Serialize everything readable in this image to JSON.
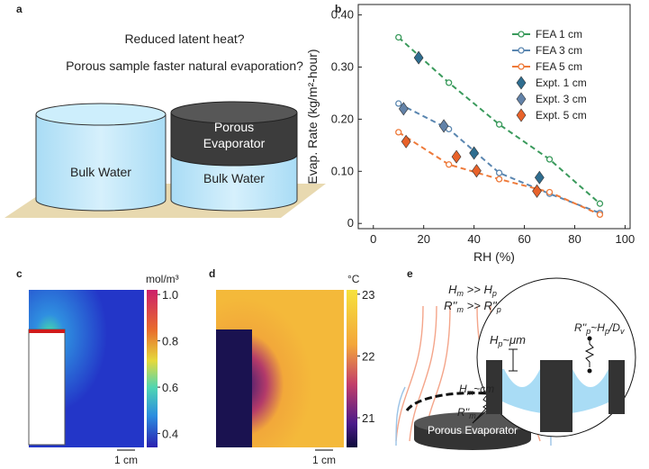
{
  "panel_a": {
    "label": "a",
    "question_1": "Reduced latent heat?",
    "question_2": "Porous sample faster natural evaporation?",
    "left_cylinder": "Bulk Water",
    "porous_line_1": "Porous",
    "porous_line_2": "Evaporator",
    "right_cylinder": "Bulk Water"
  },
  "chart_data": {
    "label": "b",
    "type": "line",
    "xlabel": "RH (%)",
    "ylabel": "Evap. Rate (kg/m²-hour)",
    "xlim": [
      -6,
      102
    ],
    "ylim": [
      -0.01,
      0.42
    ],
    "xticks": [
      0,
      20,
      40,
      60,
      80,
      100
    ],
    "yticks": [
      0,
      {
        "value": 0.1,
        "label": "0.10"
      },
      {
        "value": 0.2,
        "label": "0.20"
      },
      {
        "value": 0.3,
        "label": "0.30"
      },
      {
        "value": 0.4,
        "label": "0.40"
      }
    ],
    "legend": "upper right",
    "series": [
      {
        "name": "FEA 1 cm",
        "color": "#3a9a5c",
        "marker": "circle",
        "dashed": true,
        "x": [
          10,
          30,
          50,
          70,
          90
        ],
        "values": [
          0.357,
          0.27,
          0.19,
          0.123,
          0.038
        ]
      },
      {
        "name": "FEA 3 cm",
        "color": "#5a86b0",
        "marker": "circle",
        "dashed": true,
        "x": [
          10,
          30,
          50,
          70,
          90
        ],
        "values": [
          0.23,
          0.181,
          0.097,
          0.057,
          0.02
        ]
      },
      {
        "name": "FEA 5 cm",
        "color": "#ee7a3a",
        "marker": "circle",
        "dashed": true,
        "x": [
          10,
          30,
          50,
          70,
          90
        ],
        "values": [
          0.175,
          0.113,
          0.085,
          0.06,
          0.017
        ]
      },
      {
        "name": "Expt. 1 cm",
        "color": "#2f6d8f",
        "marker": "diamond",
        "dashed": false,
        "x": [
          18,
          40,
          66
        ],
        "values": [
          0.318,
          0.135,
          0.088
        ]
      },
      {
        "name": "Expt. 3 cm",
        "color": "#6282a8",
        "marker": "diamond",
        "dashed": false,
        "x": [
          12,
          28
        ],
        "values": [
          0.22,
          0.187
        ]
      },
      {
        "name": "Expt. 5 cm",
        "color": "#e8622a",
        "marker": "diamond",
        "dashed": false,
        "x": [
          13,
          33,
          41,
          65
        ],
        "values": [
          0.157,
          0.128,
          0.101,
          0.062
        ]
      }
    ]
  },
  "panel_c": {
    "label": "c",
    "unit": "mol/m³",
    "colorbar_lim": [
      0.34,
      1.02
    ],
    "colorbar_ticks": [
      {
        "value": 1,
        "label": "1.0"
      },
      0.8,
      0.6,
      0.4
    ],
    "scale": "1 cm"
  },
  "panel_d": {
    "label": "d",
    "unit": "°C",
    "colorbar_lim": [
      20.52,
      23.07
    ],
    "colorbar_ticks": [
      23,
      22,
      21
    ],
    "scale": "1 cm"
  },
  "panel_e": {
    "label": "e",
    "eq_1": [
      "H",
      "m",
      " >> H",
      "p"
    ],
    "eq_2": [
      "R''",
      "m",
      " >> R''",
      "p"
    ],
    "hm": [
      "H",
      "m",
      "~cm"
    ],
    "rm": [
      "R''",
      "m"
    ],
    "hp": [
      "H",
      "p",
      "~μm"
    ],
    "rp": [
      "R''",
      "p",
      "~H",
      "p",
      "/D",
      "v"
    ],
    "disk": "Porous Evaporator"
  }
}
